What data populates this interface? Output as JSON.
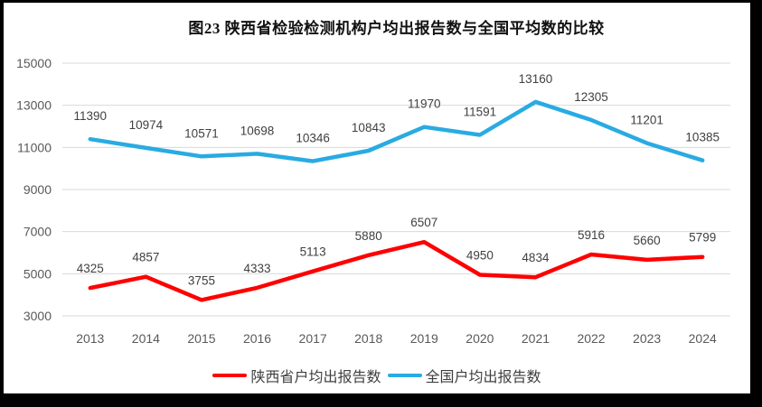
{
  "window": {
    "background_color": "#000000",
    "surface_color": "#ffffff"
  },
  "chart_data": {
    "type": "line",
    "title": "图23 陕西省检验检测机构户均出报告数与全国平均数的比较",
    "categories": [
      "2013",
      "2014",
      "2015",
      "2016",
      "2017",
      "2018",
      "2019",
      "2020",
      "2021",
      "2022",
      "2023",
      "2024"
    ],
    "series": [
      {
        "name": "陕西省户均出报告数",
        "color": "#FF0000",
        "values": [
          4325,
          4857,
          3755,
          4333,
          5113,
          5880,
          6507,
          4950,
          4834,
          5916,
          5660,
          5799
        ],
        "label_offset": -22
      },
      {
        "name": "全国户均出报告数",
        "color": "#29ABE2",
        "values": [
          11390,
          10974,
          10571,
          10698,
          10346,
          10843,
          11970,
          11591,
          13160,
          12305,
          11201,
          10385
        ],
        "label_offset": -26
      }
    ],
    "ylabel": "",
    "xlabel": "",
    "ylim": [
      3000,
      15000
    ],
    "y_ticks": [
      3000,
      5000,
      7000,
      9000,
      11000,
      13000,
      15000
    ],
    "grid": true,
    "data_labels": true,
    "legend_position": "bottom",
    "colors": {
      "gridline": "#D9D9D9",
      "axis_text": "#595959",
      "data_label_text": "#404040"
    }
  }
}
